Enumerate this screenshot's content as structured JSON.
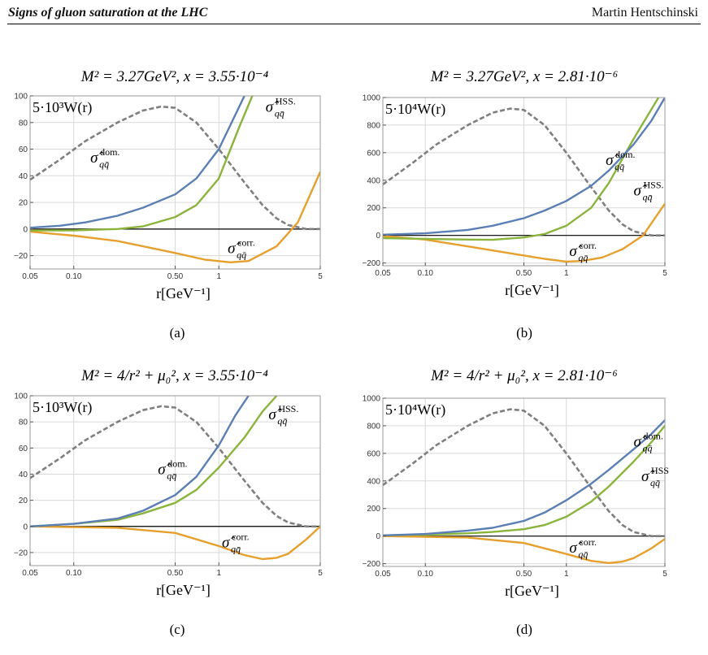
{
  "header": {
    "left": "Signs of gluon saturation at the LHC",
    "right": "Martin Hentschinski"
  },
  "colors": {
    "dom": "#5b7fb5",
    "hss": "#8ab43c",
    "corr": "#e6a02d",
    "W": "#7f7f7f",
    "grid": "#d9d9d9",
    "frame": "#999999"
  },
  "chart_data": [
    {
      "panel": "(a)",
      "type": "line",
      "title": "M² = 3.27GeV², x = 3.55·10⁻⁴",
      "xlabel": "r[GeV⁻¹]",
      "xscale": "log",
      "xlim": [
        0.05,
        5
      ],
      "ylim": [
        -30,
        100
      ],
      "xticks": [
        "0.05",
        "0.10",
        "0.50",
        "1",
        "5"
      ],
      "yticks": [
        "-20",
        "0",
        "20",
        "40",
        "60",
        "80",
        "100"
      ],
      "annotations": {
        "scaleLabel": "5·10³W(r)",
        "dom": "σ̂dom. qq̄",
        "hss": "σ̂HSS. qq̄",
        "corr": "σ̂corr. qq̄"
      },
      "series": [
        {
          "key": "dom",
          "x": [
            0.05,
            0.08,
            0.12,
            0.2,
            0.3,
            0.5,
            0.7,
            1,
            1.5
          ],
          "y": [
            1,
            2.5,
            5,
            10,
            16,
            26,
            38,
            60,
            100
          ]
        },
        {
          "key": "hss",
          "x": [
            0.05,
            0.1,
            0.2,
            0.3,
            0.5,
            0.7,
            1,
            1.4,
            1.7
          ],
          "y": [
            -1,
            -1,
            0,
            2,
            9,
            18,
            38,
            78,
            100
          ]
        },
        {
          "key": "corr",
          "x": [
            0.05,
            0.1,
            0.2,
            0.3,
            0.5,
            0.8,
            1.2,
            1.6,
            2.5,
            3.5,
            5
          ],
          "y": [
            -2,
            -5,
            -9,
            -13,
            -18,
            -23,
            -25,
            -24,
            -13,
            5,
            43
          ]
        },
        {
          "key": "W",
          "x": [
            0.05,
            0.08,
            0.12,
            0.2,
            0.3,
            0.4,
            0.5,
            0.7,
            1,
            1.5,
            2,
            2.5,
            3,
            4,
            5
          ],
          "y": [
            37,
            52,
            66,
            80,
            89,
            92,
            91,
            80,
            60,
            35,
            18,
            8,
            3,
            0,
            0
          ]
        }
      ]
    },
    {
      "panel": "(b)",
      "type": "line",
      "title": "M² = 3.27GeV², x = 2.81·10⁻⁶",
      "xlabel": "r[GeV⁻¹]",
      "xscale": "log",
      "xlim": [
        0.05,
        5
      ],
      "ylim": [
        -220,
        1000
      ],
      "xticks": [
        "0.05",
        "0.10",
        "0.50",
        "1",
        "5"
      ],
      "yticks": [
        "-200",
        "0",
        "200",
        "400",
        "600",
        "800",
        "1000"
      ],
      "annotations": {
        "scaleLabel": "5·10⁴W(r)",
        "dom": "σ̂dom. qq̄",
        "hss": "σ̂HSS. qq̄",
        "corr": "σ̂corr. qq̄"
      },
      "series": [
        {
          "key": "dom",
          "x": [
            0.05,
            0.1,
            0.2,
            0.3,
            0.5,
            0.7,
            1,
            1.5,
            2,
            3,
            4,
            5
          ],
          "y": [
            5,
            15,
            40,
            70,
            125,
            180,
            250,
            360,
            470,
            660,
            830,
            1000
          ]
        },
        {
          "key": "hss",
          "x": [
            0.05,
            0.1,
            0.2,
            0.3,
            0.5,
            0.7,
            1,
            1.5,
            2,
            3,
            4.5
          ],
          "y": [
            -20,
            -25,
            -30,
            -32,
            -15,
            10,
            70,
            200,
            380,
            700,
            1000
          ]
        },
        {
          "key": "corr",
          "x": [
            0.05,
            0.1,
            0.2,
            0.4,
            0.7,
            1,
            1.3,
            1.8,
            2.5,
            3.5,
            5
          ],
          "y": [
            -5,
            -30,
            -80,
            -130,
            -170,
            -190,
            -185,
            -160,
            -100,
            0,
            230
          ]
        },
        {
          "key": "W",
          "x": [
            0.05,
            0.08,
            0.12,
            0.2,
            0.3,
            0.4,
            0.5,
            0.7,
            1,
            1.5,
            2,
            2.5,
            3,
            4,
            5
          ],
          "y": [
            370,
            520,
            660,
            800,
            890,
            920,
            910,
            800,
            600,
            350,
            180,
            80,
            30,
            0,
            0
          ]
        }
      ]
    },
    {
      "panel": "(c)",
      "type": "line",
      "title": "M² = 4/r² + μ₀², x = 3.55·10⁻⁴",
      "xlabel": "r[GeV⁻¹]",
      "xscale": "log",
      "xlim": [
        0.05,
        5
      ],
      "ylim": [
        -30,
        100
      ],
      "xticks": [
        "0.05",
        "0.10",
        "0.50",
        "1",
        "5"
      ],
      "yticks": [
        "-20",
        "0",
        "20",
        "40",
        "60",
        "80",
        "100"
      ],
      "annotations": {
        "scaleLabel": "5·10³W(r)",
        "dom": "σ̂dom. qq̄",
        "hss": "σ̂HSS. qq̄",
        "corr": "σ̂corr. qq̄"
      },
      "series": [
        {
          "key": "dom",
          "x": [
            0.05,
            0.1,
            0.2,
            0.3,
            0.5,
            0.7,
            1,
            1.3,
            1.6
          ],
          "y": [
            0,
            2,
            6,
            12,
            24,
            38,
            62,
            85,
            100
          ]
        },
        {
          "key": "hss",
          "x": [
            0.05,
            0.1,
            0.2,
            0.3,
            0.5,
            0.7,
            1,
            1.5,
            2,
            2.5
          ],
          "y": [
            0,
            2,
            5,
            10,
            18,
            28,
            45,
            68,
            88,
            100
          ]
        },
        {
          "key": "corr",
          "x": [
            0.05,
            0.2,
            0.5,
            1,
            1.5,
            2,
            2.5,
            3,
            4,
            5
          ],
          "y": [
            0,
            -1,
            -5,
            -15,
            -22,
            -25,
            -24,
            -21,
            -10,
            0
          ]
        },
        {
          "key": "W",
          "x": [
            0.05,
            0.08,
            0.12,
            0.2,
            0.3,
            0.4,
            0.5,
            0.7,
            1,
            1.5,
            2,
            2.5,
            3,
            4,
            5
          ],
          "y": [
            37,
            52,
            66,
            80,
            89,
            92,
            91,
            80,
            60,
            35,
            18,
            8,
            3,
            0,
            0
          ]
        }
      ]
    },
    {
      "panel": "(d)",
      "type": "line",
      "title": "M² = 4/r² + μ₀², x = 2.81·10⁻⁶",
      "xlabel": "r[GeV⁻¹]",
      "xscale": "log",
      "xlim": [
        0.05,
        5
      ],
      "ylim": [
        -220,
        1000
      ],
      "xticks": [
        "0.05",
        "0.10",
        "0.50",
        "1",
        "5"
      ],
      "yticks": [
        "-200",
        "0",
        "200",
        "400",
        "600",
        "800",
        "1000"
      ],
      "annotations": {
        "scaleLabel": "5·10⁴W(r)",
        "dom": "σ̂dom. qq̄",
        "hss": "σ̂HSS qq̄",
        "corr": "σ̂corr. qq̄"
      },
      "series": [
        {
          "key": "dom",
          "x": [
            0.05,
            0.1,
            0.2,
            0.3,
            0.5,
            0.7,
            1,
            1.5,
            2,
            3,
            4,
            5
          ],
          "y": [
            5,
            15,
            40,
            60,
            110,
            170,
            260,
            380,
            480,
            630,
            740,
            840
          ]
        },
        {
          "key": "hss",
          "x": [
            0.05,
            0.1,
            0.2,
            0.3,
            0.5,
            0.7,
            1,
            1.5,
            2,
            3,
            4,
            5
          ],
          "y": [
            5,
            10,
            20,
            30,
            50,
            80,
            140,
            250,
            360,
            540,
            680,
            800
          ]
        },
        {
          "key": "corr",
          "x": [
            0.05,
            0.2,
            0.5,
            1,
            1.5,
            2,
            2.5,
            3,
            4,
            5
          ],
          "y": [
            0,
            -10,
            -50,
            -130,
            -180,
            -195,
            -185,
            -160,
            -90,
            -20
          ]
        },
        {
          "key": "W",
          "x": [
            0.05,
            0.08,
            0.12,
            0.2,
            0.3,
            0.4,
            0.5,
            0.7,
            1,
            1.5,
            2,
            2.5,
            3,
            4,
            5
          ],
          "y": [
            370,
            520,
            660,
            800,
            890,
            920,
            910,
            800,
            600,
            350,
            180,
            80,
            30,
            0,
            0
          ]
        }
      ]
    }
  ]
}
